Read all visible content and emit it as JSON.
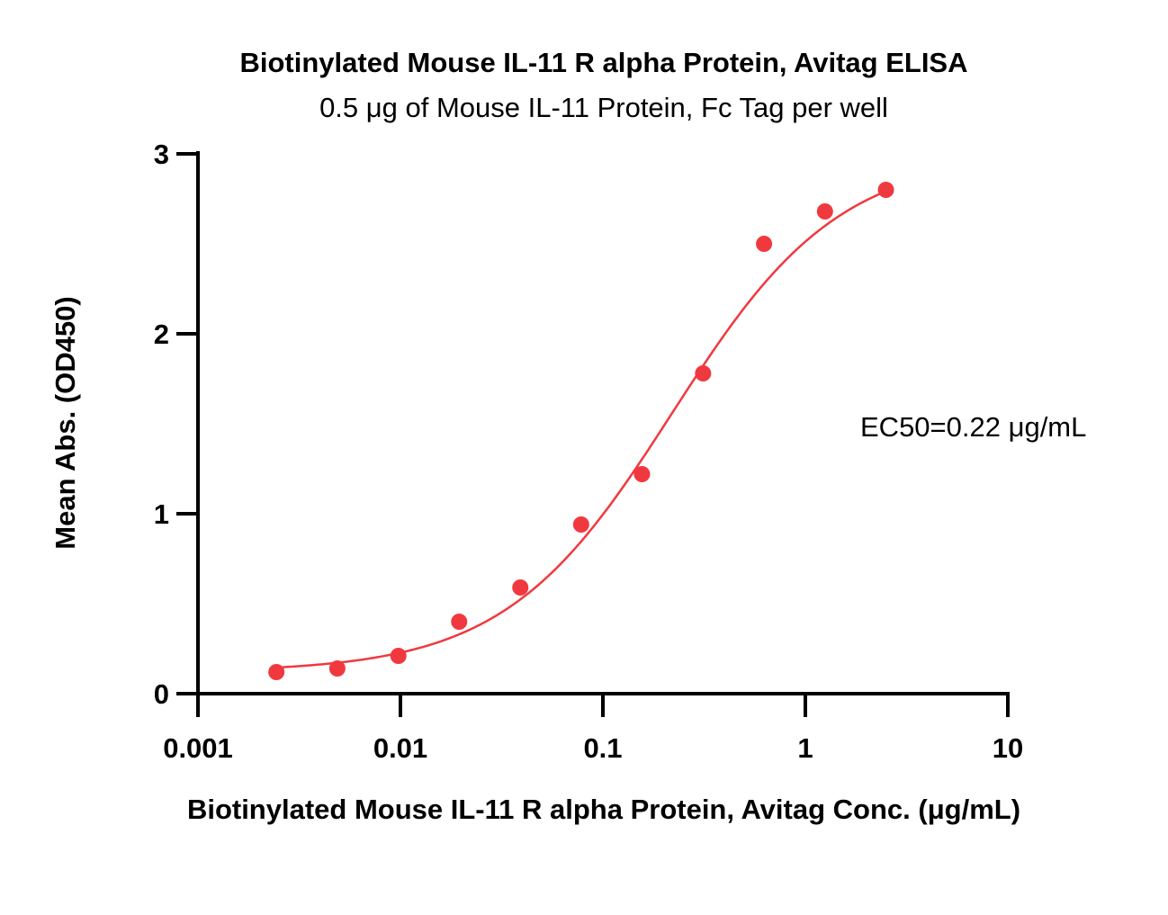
{
  "chart_data": {
    "type": "scatter",
    "title": "Biotinylated Mouse IL-11 R alpha Protein, Avitag ELISA",
    "subtitle": "0.5 μg of Mouse IL-11 Protein, Fc Tag  per well",
    "xlabel": "Biotinylated Mouse IL-11 R alpha Protein, Avitag Conc. (μg/mL)",
    "ylabel": "Mean Abs. (OD450)",
    "x_scale": "log",
    "xlim": [
      0.001,
      10
    ],
    "ylim": [
      0,
      3
    ],
    "x_ticks": [
      {
        "value": 0.001,
        "label": "0.001"
      },
      {
        "value": 0.01,
        "label": "0.01"
      },
      {
        "value": 0.1,
        "label": "0.1"
      },
      {
        "value": 1,
        "label": "1"
      },
      {
        "value": 10,
        "label": "10"
      }
    ],
    "y_ticks": [
      {
        "value": 0,
        "label": "0"
      },
      {
        "value": 1,
        "label": "1"
      },
      {
        "value": 2,
        "label": "2"
      },
      {
        "value": 3,
        "label": "3"
      }
    ],
    "grid": false,
    "series": [
      {
        "color": "#f0393f",
        "x": [
          0.00244,
          0.00488,
          0.00977,
          0.0195,
          0.0391,
          0.0781,
          0.156,
          0.3125,
          0.625,
          1.25,
          2.5
        ],
        "y": [
          0.12,
          0.14,
          0.21,
          0.4,
          0.59,
          0.94,
          1.22,
          1.78,
          2.5,
          2.68,
          2.8
        ]
      }
    ],
    "fit_curve": {
      "model": "4PL",
      "bottom": 0.12,
      "top": 3.0,
      "ec50": 0.22,
      "hill": 1.05,
      "x_range": [
        0.00244,
        2.5
      ],
      "color": "#f0393f"
    },
    "annotations": [
      {
        "text": "EC50=0.22 μg/mL"
      }
    ]
  }
}
